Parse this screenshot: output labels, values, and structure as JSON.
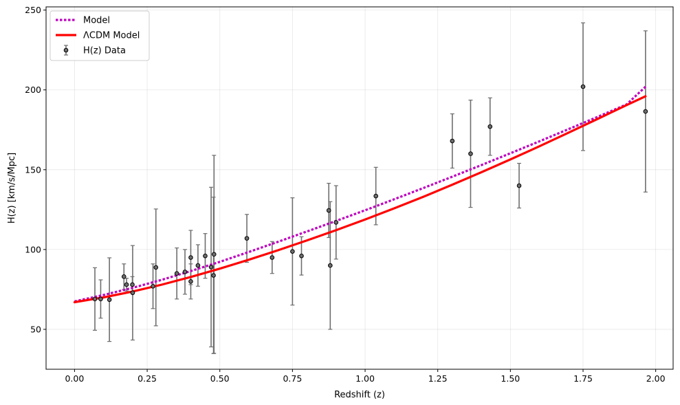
{
  "chart_data": {
    "type": "scatter",
    "title": "",
    "xlabel": "Redshift (z)",
    "ylabel": "H(z) [km/s/Mpc]",
    "xlim": [
      -0.098,
      2.06
    ],
    "ylim": [
      25,
      252
    ],
    "xticks": [
      0.0,
      0.25,
      0.5,
      0.75,
      1.0,
      1.25,
      1.5,
      1.75,
      2.0
    ],
    "xtick_labels": [
      "0.00",
      "0.25",
      "0.50",
      "0.75",
      "1.00",
      "1.25",
      "1.50",
      "1.75",
      "2.00"
    ],
    "yticks": [
      50,
      100,
      150,
      200,
      250
    ],
    "ytick_labels": [
      "50",
      "100",
      "150",
      "200",
      "250"
    ],
    "grid": true,
    "legend_position": "top-left",
    "series": [
      {
        "name": "Model",
        "kind": "line",
        "style": "dotted",
        "color": "#bf00bf",
        "x": [
          0.0,
          0.1,
          0.2,
          0.3,
          0.4,
          0.5,
          0.6,
          0.7,
          0.8,
          0.9,
          1.0,
          1.1,
          1.2,
          1.3,
          1.4,
          1.5,
          1.6,
          1.7,
          1.8,
          1.9,
          1.965
        ],
        "y": [
          67.5,
          71.5,
          76.0,
          81.0,
          86.5,
          92.3,
          98.5,
          104.8,
          111.3,
          117.9,
          124.6,
          131.5,
          138.5,
          145.6,
          152.9,
          160.3,
          167.8,
          175.4,
          183.1,
          190.9,
          202.0
        ]
      },
      {
        "name": "ΛCDM Model",
        "kind": "line",
        "style": "solid",
        "color": "#ff0000",
        "x": [
          0.0,
          0.1,
          0.2,
          0.3,
          0.4,
          0.5,
          0.6,
          0.7,
          0.8,
          0.9,
          1.0,
          1.1,
          1.2,
          1.3,
          1.4,
          1.5,
          1.6,
          1.7,
          1.8,
          1.9,
          1.965
        ],
        "y": [
          67.0,
          70.0,
          73.7,
          78.0,
          82.8,
          88.0,
          93.6,
          99.5,
          105.7,
          112.1,
          118.8,
          125.8,
          133.0,
          140.6,
          148.4,
          156.4,
          164.7,
          173.2,
          181.8,
          190.5,
          196.0
        ]
      },
      {
        "name": "H(z) Data",
        "kind": "errorbar",
        "color": "#555555",
        "x": [
          0.07,
          0.09,
          0.12,
          0.17,
          0.179,
          0.199,
          0.2,
          0.27,
          0.28,
          0.352,
          0.38,
          0.4,
          0.4,
          0.4247,
          0.4497,
          0.47,
          0.4783,
          0.48,
          0.593,
          0.68,
          0.75,
          0.781,
          0.875,
          0.88,
          0.9,
          1.037,
          1.3,
          1.363,
          1.43,
          1.53,
          1.75,
          1.965
        ],
        "y": [
          69.0,
          69.0,
          68.6,
          83.0,
          78.0,
          78.0,
          72.9,
          77.0,
          88.8,
          85.0,
          86.0,
          95.0,
          80.0,
          90.0,
          96.0,
          89.0,
          83.8,
          97.0,
          107.0,
          95.0,
          98.8,
          96.0,
          124.5,
          90.0,
          117.0,
          133.5,
          168.0,
          160.0,
          177.0,
          140.0,
          202.0,
          186.5
        ],
        "yerr": [
          19.6,
          12.0,
          26.2,
          8.0,
          4.0,
          5.0,
          29.6,
          14.0,
          36.6,
          16.0,
          14.0,
          17.0,
          11.0,
          13.0,
          14.0,
          50.0,
          49.0,
          62.0,
          15.0,
          10.0,
          33.6,
          12.0,
          17.0,
          40.0,
          23.0,
          18.0,
          17.0,
          33.6,
          18.0,
          14.0,
          40.0,
          50.5
        ]
      }
    ]
  }
}
